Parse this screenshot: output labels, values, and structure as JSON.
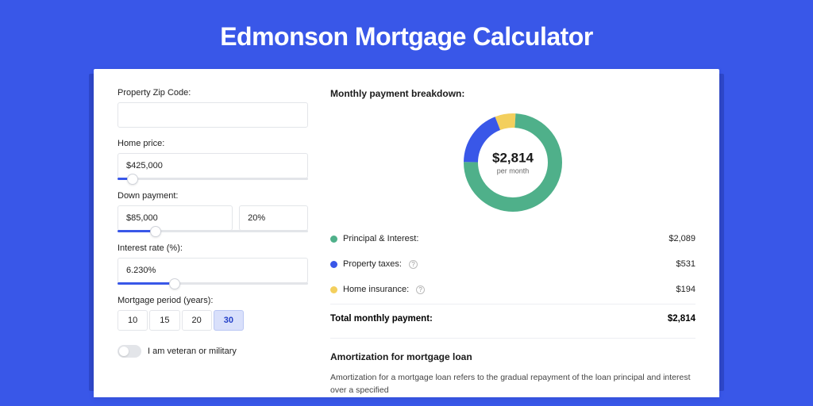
{
  "page": {
    "background_color": "#3957e8",
    "title": "Edmonson Mortgage Calculator"
  },
  "form": {
    "zip": {
      "label": "Property Zip Code:",
      "value": ""
    },
    "home_price": {
      "label": "Home price:",
      "value": "$425,000",
      "slider_pct": 8
    },
    "down_payment": {
      "label": "Down payment:",
      "value": "$85,000",
      "pct_value": "20%",
      "slider_pct": 20
    },
    "interest_rate": {
      "label": "Interest rate (%):",
      "value": "6.230%",
      "slider_pct": 30
    },
    "period": {
      "label": "Mortgage period (years):",
      "options": [
        "10",
        "15",
        "20",
        "30"
      ],
      "selected": "30"
    },
    "veteran": {
      "label": "I am veteran or military",
      "checked": false
    }
  },
  "breakdown": {
    "title": "Monthly payment breakdown:",
    "donut": {
      "center_value": "$2,814",
      "center_sub": "per month",
      "ring_width": 18,
      "segments": [
        {
          "label": "Principal & Interest:",
          "value": "$2,089",
          "amount": 2089,
          "color": "#4fb08a",
          "has_info": false
        },
        {
          "label": "Property taxes:",
          "value": "$531",
          "amount": 531,
          "color": "#3957e8",
          "has_info": true
        },
        {
          "label": "Home insurance:",
          "value": "$194",
          "amount": 194,
          "color": "#f3cf5d",
          "has_info": true
        }
      ]
    },
    "total": {
      "label": "Total monthly payment:",
      "value": "$2,814"
    }
  },
  "amort": {
    "title": "Amortization for mortgage loan",
    "body": "Amortization for a mortgage loan refers to the gradual repayment of the loan principal and interest over a specified"
  }
}
